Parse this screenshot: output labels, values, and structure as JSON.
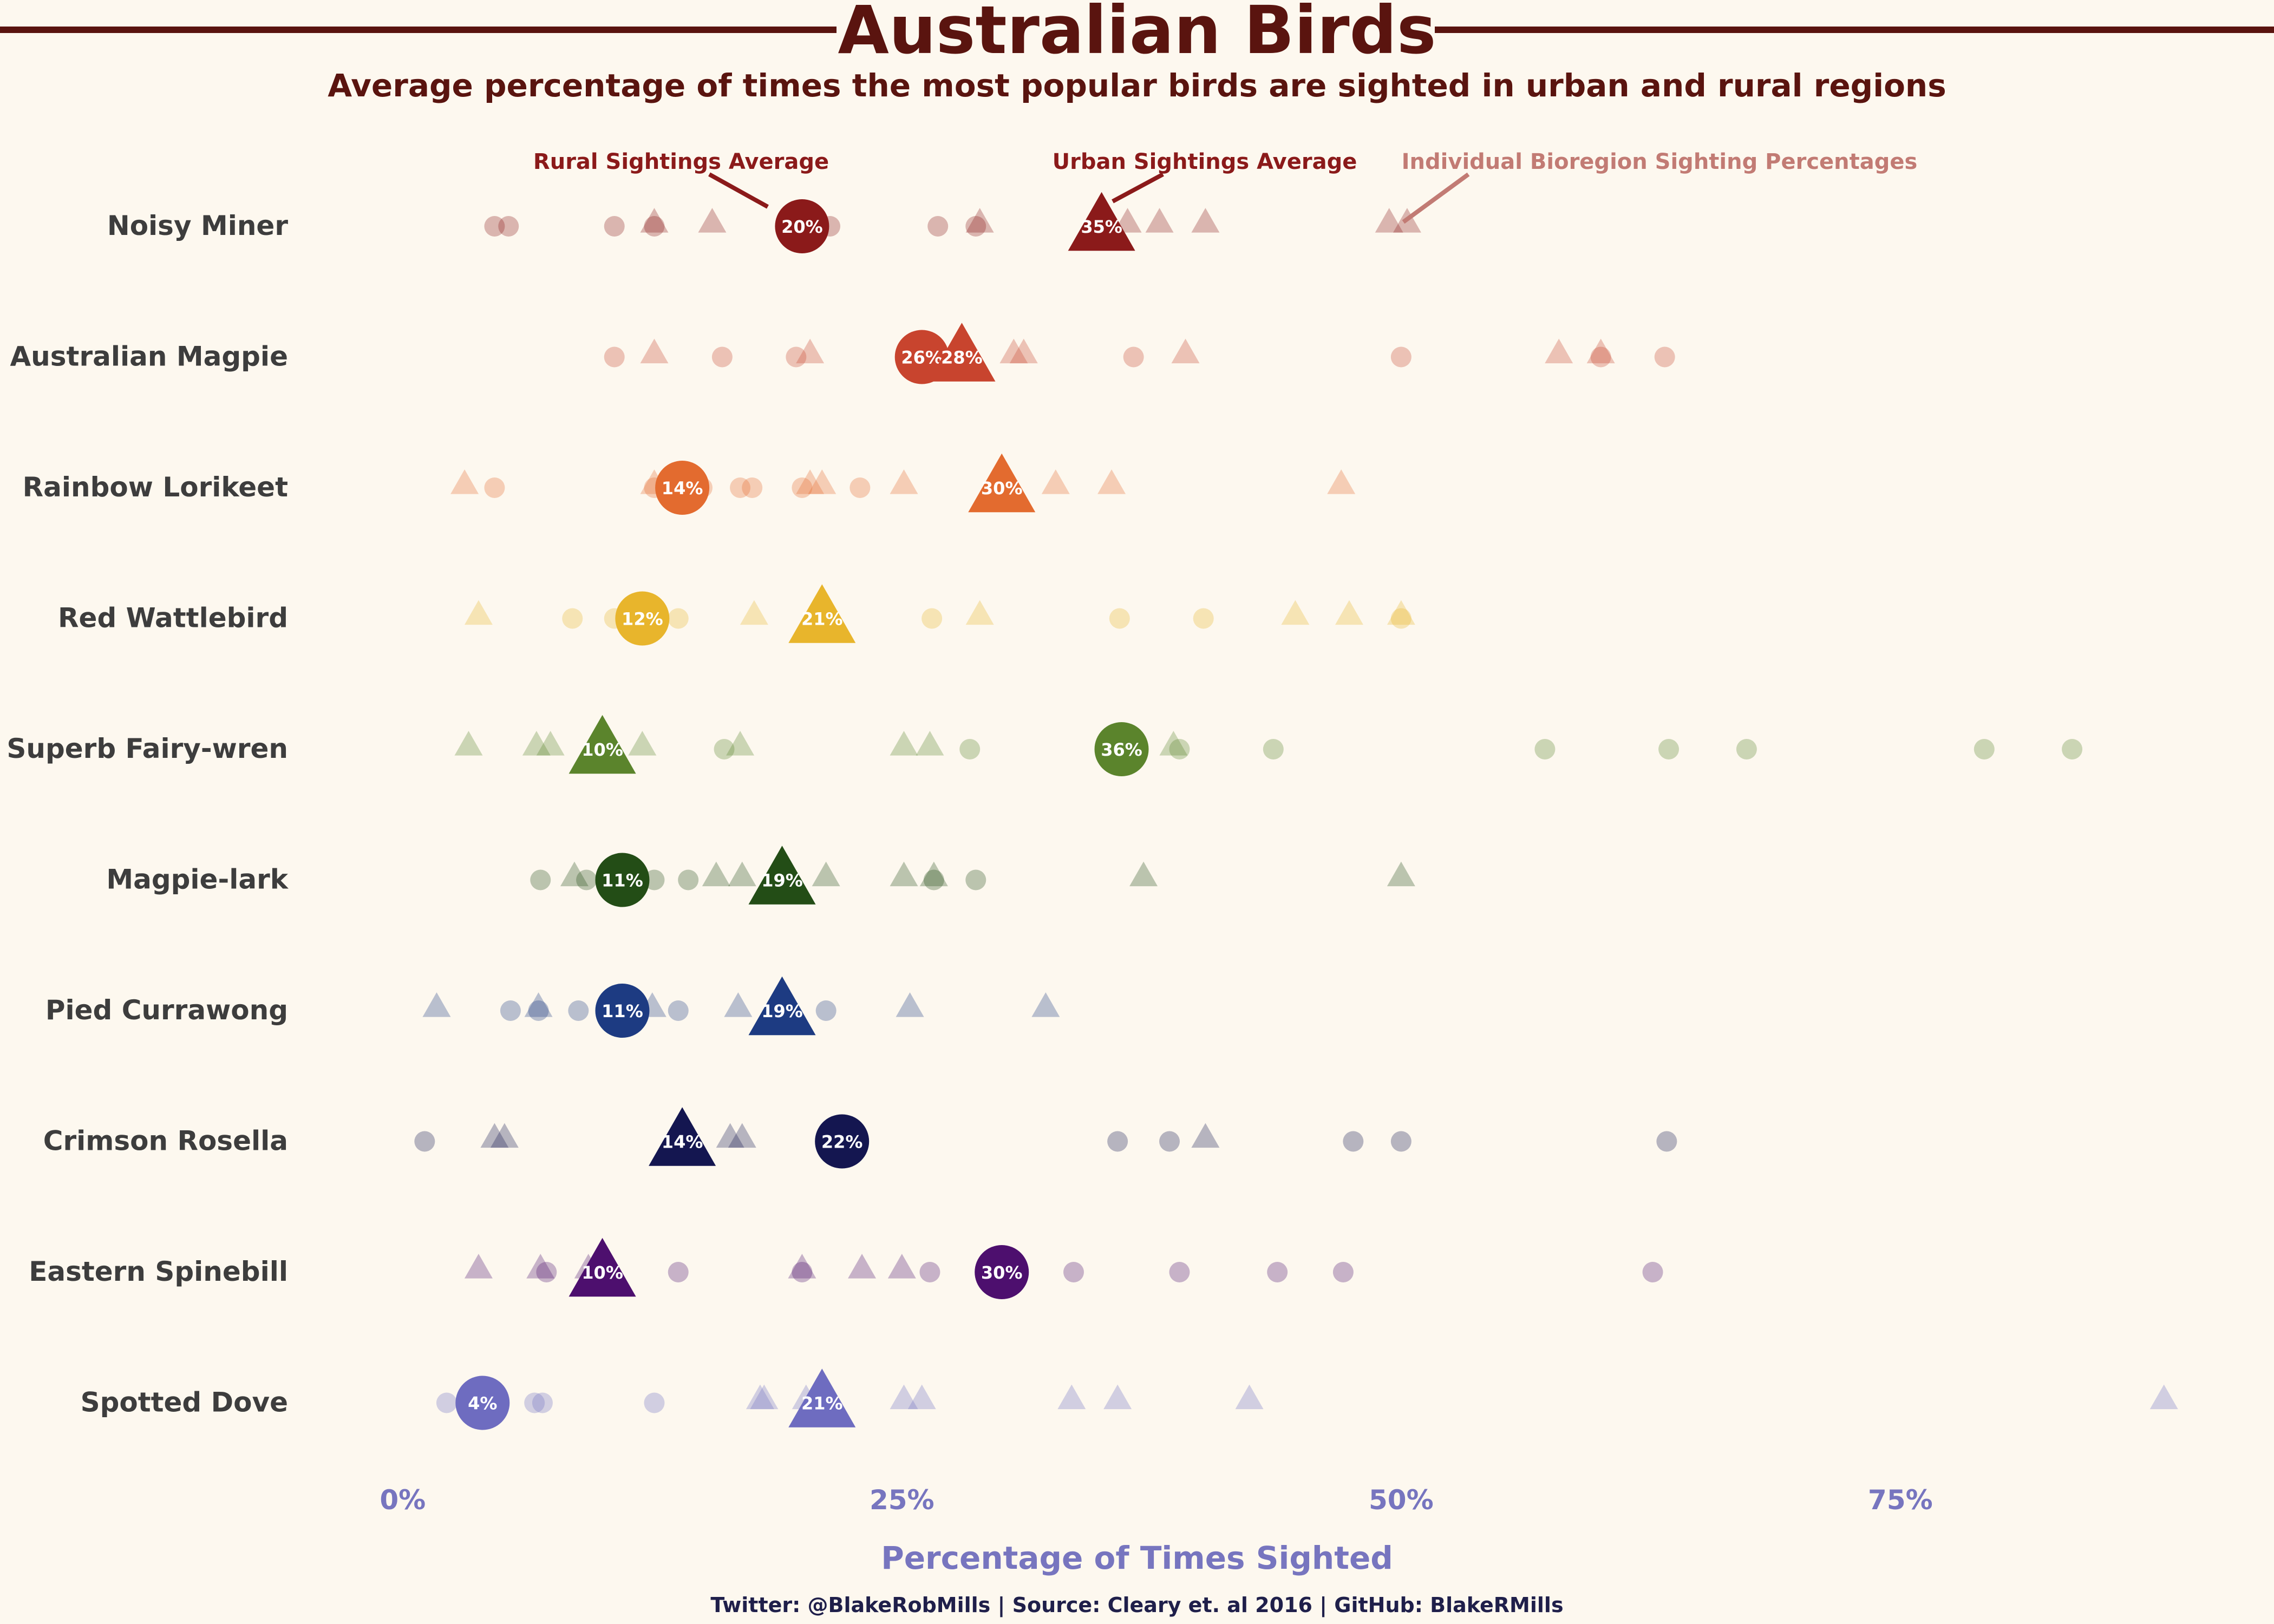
{
  "chart_data": {
    "type": "scatter",
    "title": "Australian Birds",
    "subtitle": "Average percentage of times the most popular birds are sighted in urban and rural regions",
    "xlabel": "Percentage of Times Sighted",
    "ylabel": "",
    "xlim": [
      -2,
      91
    ],
    "x_ticks": [
      {
        "value": 0,
        "label": "0%"
      },
      {
        "value": 25,
        "label": "25%"
      },
      {
        "value": 50,
        "label": "50%"
      },
      {
        "value": 75,
        "label": "75%"
      }
    ],
    "grid": false,
    "legend": "none",
    "annotations": {
      "rural": "Rural Sightings Average",
      "urban": "Urban Sightings Average",
      "individual": "Individual Bioregion Sighting Percentages"
    },
    "caption": "Twitter: @BlakeRobMills | Source: Cleary et. al 2016 | GitHub: BlakeRMills",
    "marker_meaning": {
      "circle": "rural",
      "triangle": "urban"
    },
    "birds": [
      {
        "name": "Noisy Miner",
        "color": "#8b1a1a",
        "rural_avg": 20,
        "rural_label": "20%",
        "urban_avg": 35,
        "urban_label": "35%",
        "rural_points": [
          4.6,
          5.3,
          10.6,
          12.6,
          21.4,
          26.8,
          28.7
        ],
        "urban_points": [
          12.6,
          15.5,
          28.9,
          36.3,
          37.9,
          40.2,
          49.4,
          50.3
        ]
      },
      {
        "name": "Australian Magpie",
        "color": "#c8442e",
        "rural_avg": 26,
        "rural_label": "26%",
        "urban_avg": 28,
        "urban_label": "28%",
        "rural_points": [
          10.6,
          16.0,
          19.7,
          36.6,
          50.0,
          60.0,
          63.2
        ],
        "urban_points": [
          12.6,
          20.4,
          30.6,
          31.1,
          39.2,
          57.9,
          60.0
        ]
      },
      {
        "name": "Rainbow Lorikeet",
        "color": "#e36b2f",
        "rural_avg": 14,
        "rural_label": "14%",
        "urban_avg": 30,
        "urban_label": "30%",
        "rural_points": [
          4.6,
          12.6,
          15.0,
          16.9,
          17.5,
          20.0,
          22.9
        ],
        "urban_points": [
          3.1,
          12.6,
          20.4,
          21.0,
          25.1,
          32.7,
          35.5,
          47.0
        ]
      },
      {
        "name": "Red Wattlebird",
        "color": "#e8b52c",
        "rural_avg": 12,
        "rural_label": "12%",
        "urban_avg": 21,
        "urban_label": "21%",
        "rural_points": [
          8.5,
          10.6,
          12.6,
          13.8,
          26.5,
          35.9,
          40.1,
          50.0
        ],
        "urban_points": [
          3.8,
          17.6,
          28.9,
          44.7,
          47.4,
          50.0
        ]
      },
      {
        "name": "Superb Fairy-wren",
        "color": "#5b842c",
        "rural_avg": 36,
        "rural_label": "36%",
        "urban_avg": 10,
        "urban_label": "10%",
        "rural_points": [
          16.1,
          28.4,
          38.9,
          43.6,
          57.2,
          63.4,
          67.3,
          79.2,
          83.6
        ],
        "urban_points": [
          3.3,
          6.7,
          7.4,
          12.0,
          16.9,
          25.1,
          26.4,
          38.6
        ]
      },
      {
        "name": "Magpie-lark",
        "color": "#234d16",
        "rural_avg": 11,
        "rural_label": "11%",
        "urban_avg": 19,
        "urban_label": "19%",
        "rural_points": [
          6.9,
          9.2,
          12.6,
          14.3,
          26.6,
          28.7
        ],
        "urban_points": [
          8.6,
          15.7,
          17.0,
          21.2,
          25.1,
          26.6,
          37.1,
          50.0
        ]
      },
      {
        "name": "Pied Currawong",
        "color": "#1d3b82",
        "rural_avg": 11,
        "rural_label": "11%",
        "urban_avg": 19,
        "urban_label": "19%",
        "rural_points": [
          5.4,
          6.8,
          8.8,
          13.8,
          21.2
        ],
        "urban_points": [
          1.7,
          6.8,
          12.5,
          16.8,
          25.4,
          32.2
        ]
      },
      {
        "name": "Crimson Rosella",
        "color": "#141650",
        "rural_avg": 22,
        "rural_label": "22%",
        "urban_avg": 14,
        "urban_label": "14%",
        "rural_points": [
          1.1,
          35.8,
          38.4,
          47.6,
          50.0,
          63.3
        ],
        "urban_points": [
          4.6,
          5.1,
          16.4,
          17.0,
          40.2
        ]
      },
      {
        "name": "Eastern Spinebill",
        "color": "#4d0f6e",
        "rural_avg": 30,
        "rural_label": "30%",
        "urban_avg": 10,
        "urban_label": "10%",
        "rural_points": [
          7.2,
          13.8,
          20.0,
          26.4,
          33.6,
          38.9,
          43.8,
          47.1,
          62.6
        ],
        "urban_points": [
          3.8,
          6.9,
          9.3,
          20.0,
          23.0,
          25.0
        ]
      },
      {
        "name": "Spotted Dove",
        "color": "#6e6cc0",
        "rural_avg": 4,
        "rural_label": "4%",
        "urban_avg": 21,
        "urban_label": "21%",
        "rural_points": [
          2.2,
          6.6,
          7.0,
          12.6
        ],
        "urban_points": [
          17.9,
          18.1,
          20.2,
          25.1,
          26.0,
          33.5,
          35.8,
          42.4,
          88.2
        ]
      }
    ]
  },
  "colors": {
    "background": "#fdf8ef",
    "title": "#5a140f",
    "bird_label": "#3d3d3d",
    "axis_text": "#7775bf",
    "annotation_rural": "#8b1a1a",
    "annotation_urban": "#8b1a1a",
    "annotation_individual": "#c27b74",
    "caption": "#1f1f4a"
  }
}
